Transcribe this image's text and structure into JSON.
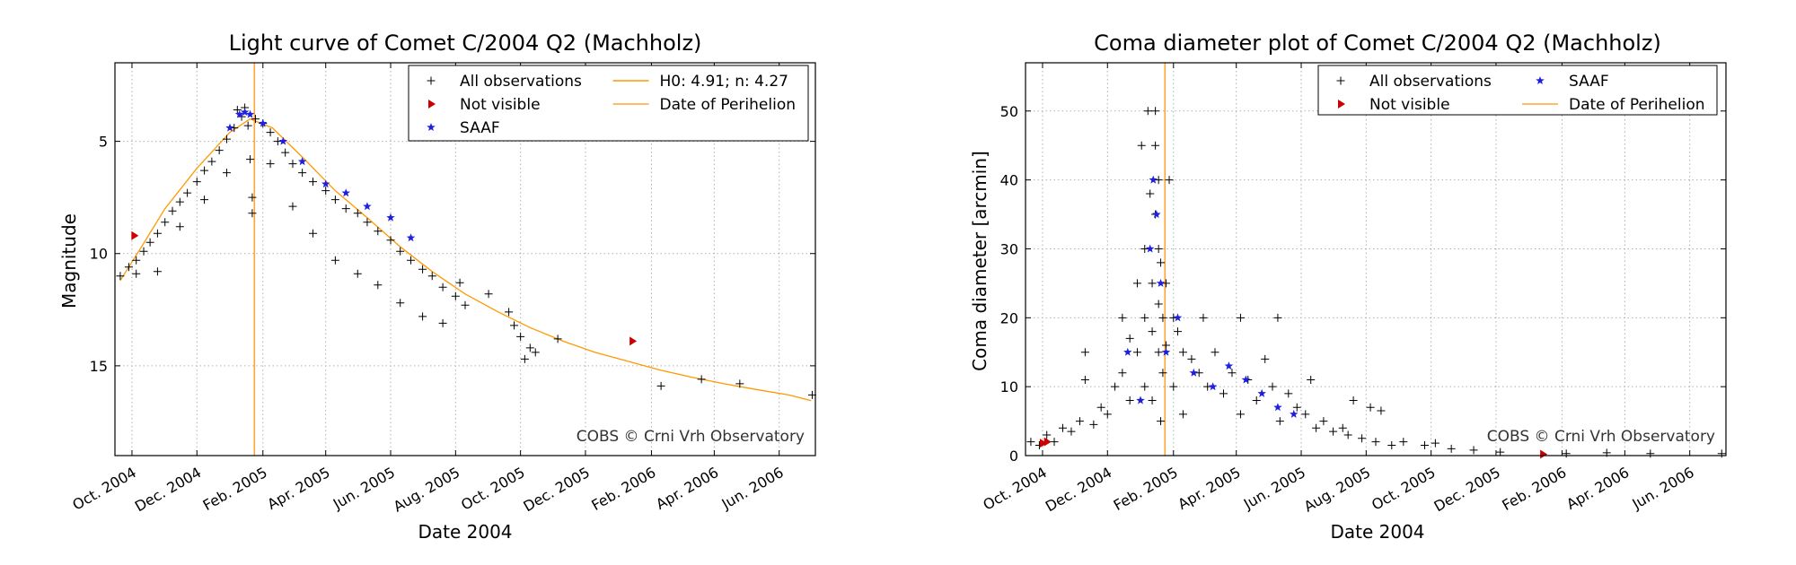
{
  "colors": {
    "observation": "#000000",
    "not_visible": "#cc0000",
    "saaf": "#1f1fe0",
    "model": "#ff9900",
    "perihelion": "#ffa533",
    "grid": "#b0b0b0"
  },
  "chart_data": [
    {
      "type": "scatter",
      "title": "Light curve of Comet C/2004 Q2 (Machholz)",
      "xlabel": "Date 2004",
      "ylabel": "Magnitude",
      "credit": "COBS © Crni Vrh Observatory",
      "xlim": [
        "2004-09-15",
        "2006-07-05"
      ],
      "ylim": [
        19,
        1.5
      ],
      "y_inverted": true,
      "grid": true,
      "legend_placement": "top-right",
      "x_ticks": [
        {
          "date": "2004-10-01",
          "label": "Oct. 2004"
        },
        {
          "date": "2004-12-01",
          "label": "Dec. 2004"
        },
        {
          "date": "2005-02-01",
          "label": "Feb. 2005"
        },
        {
          "date": "2005-04-01",
          "label": "Apr. 2005"
        },
        {
          "date": "2005-06-01",
          "label": "Jun. 2005"
        },
        {
          "date": "2005-08-01",
          "label": "Aug. 2005"
        },
        {
          "date": "2005-10-01",
          "label": "Oct. 2005"
        },
        {
          "date": "2005-12-01",
          "label": "Dec. 2005"
        },
        {
          "date": "2006-02-01",
          "label": "Feb. 2006"
        },
        {
          "date": "2006-04-01",
          "label": "Apr. 2006"
        },
        {
          "date": "2006-06-01",
          "label": "Jun. 2006"
        }
      ],
      "y_ticks": [
        {
          "value": 5,
          "label": "5"
        },
        {
          "value": 10,
          "label": "10"
        },
        {
          "value": 15,
          "label": "15"
        }
      ],
      "legend": [
        {
          "label": "All observations",
          "marker": "plus"
        },
        {
          "label": "Not visible",
          "marker": "triangle"
        },
        {
          "label": "SAAF",
          "marker": "star"
        },
        {
          "label": "H0: 4.91; n: 4.27",
          "marker": "line"
        },
        {
          "label": "Date of Perihelion",
          "marker": "line"
        }
      ],
      "perihelion_date": "2005-01-24",
      "model_curve": [
        [
          "2004-09-20",
          11.2
        ],
        [
          "2004-10-10",
          9.7
        ],
        [
          "2004-11-01",
          8.0
        ],
        [
          "2004-12-01",
          6.2
        ],
        [
          "2005-01-01",
          4.6
        ],
        [
          "2005-01-20",
          4.0
        ],
        [
          "2005-02-10",
          4.4
        ],
        [
          "2005-03-10",
          5.7
        ],
        [
          "2005-04-10",
          7.2
        ],
        [
          "2005-05-10",
          8.4
        ],
        [
          "2005-06-10",
          9.7
        ],
        [
          "2005-07-10",
          10.8
        ],
        [
          "2005-08-10",
          11.8
        ],
        [
          "2005-09-10",
          12.6
        ],
        [
          "2005-10-10",
          13.3
        ],
        [
          "2005-11-10",
          13.9
        ],
        [
          "2005-12-10",
          14.4
        ],
        [
          "2006-01-10",
          14.8
        ],
        [
          "2006-02-10",
          15.2
        ],
        [
          "2006-03-10",
          15.5
        ],
        [
          "2006-04-10",
          15.8
        ],
        [
          "2006-05-10",
          16.05
        ],
        [
          "2006-06-10",
          16.3
        ],
        [
          "2006-07-01",
          16.55
        ]
      ],
      "observations": [
        [
          "2004-09-20",
          11.0
        ],
        [
          "2004-09-28",
          10.6
        ],
        [
          "2004-10-05",
          10.3
        ],
        [
          "2004-10-05",
          10.9
        ],
        [
          "2004-10-12",
          9.9
        ],
        [
          "2004-10-18",
          9.5
        ],
        [
          "2004-10-25",
          9.1
        ],
        [
          "2004-10-25",
          10.8
        ],
        [
          "2004-11-01",
          8.6
        ],
        [
          "2004-11-08",
          8.1
        ],
        [
          "2004-11-15",
          7.7
        ],
        [
          "2004-11-15",
          8.8
        ],
        [
          "2004-11-22",
          7.3
        ],
        [
          "2004-12-01",
          6.8
        ],
        [
          "2004-12-08",
          6.3
        ],
        [
          "2004-12-08",
          7.6
        ],
        [
          "2004-12-15",
          5.9
        ],
        [
          "2004-12-22",
          5.4
        ],
        [
          "2004-12-29",
          4.9
        ],
        [
          "2004-12-29",
          6.4
        ],
        [
          "2005-01-05",
          4.4
        ],
        [
          "2005-01-08",
          3.6
        ],
        [
          "2005-01-12",
          3.9
        ],
        [
          "2005-01-15",
          3.5
        ],
        [
          "2005-01-18",
          4.3
        ],
        [
          "2005-01-20",
          5.8
        ],
        [
          "2005-01-22",
          7.5
        ],
        [
          "2005-01-22",
          8.2
        ],
        [
          "2005-01-25",
          4.0
        ],
        [
          "2005-02-01",
          4.2
        ],
        [
          "2005-02-08",
          4.6
        ],
        [
          "2005-02-08",
          6.0
        ],
        [
          "2005-02-15",
          5.0
        ],
        [
          "2005-02-22",
          5.5
        ],
        [
          "2005-03-01",
          6.0
        ],
        [
          "2005-03-01",
          7.9
        ],
        [
          "2005-03-10",
          6.4
        ],
        [
          "2005-03-20",
          6.8
        ],
        [
          "2005-03-20",
          9.1
        ],
        [
          "2005-04-01",
          7.2
        ],
        [
          "2005-04-10",
          7.6
        ],
        [
          "2005-04-10",
          10.3
        ],
        [
          "2005-04-20",
          8.0
        ],
        [
          "2005-05-01",
          8.2
        ],
        [
          "2005-05-01",
          10.9
        ],
        [
          "2005-05-10",
          8.6
        ],
        [
          "2005-05-20",
          9.0
        ],
        [
          "2005-05-20",
          11.4
        ],
        [
          "2005-06-01",
          9.4
        ],
        [
          "2005-06-10",
          9.9
        ],
        [
          "2005-06-10",
          12.2
        ],
        [
          "2005-06-20",
          10.3
        ],
        [
          "2005-07-01",
          10.7
        ],
        [
          "2005-07-01",
          12.8
        ],
        [
          "2005-07-10",
          11.0
        ],
        [
          "2005-07-20",
          11.5
        ],
        [
          "2005-07-20",
          13.1
        ],
        [
          "2005-08-01",
          11.9
        ],
        [
          "2005-08-05",
          11.3
        ],
        [
          "2005-08-10",
          12.3
        ],
        [
          "2005-09-01",
          11.8
        ],
        [
          "2005-09-20",
          12.6
        ],
        [
          "2005-09-25",
          13.2
        ],
        [
          "2005-10-01",
          13.7
        ],
        [
          "2005-10-10",
          14.2
        ],
        [
          "2005-10-15",
          14.4
        ],
        [
          "2005-10-05",
          14.7
        ],
        [
          "2005-11-05",
          13.8
        ],
        [
          "2006-02-10",
          15.9
        ],
        [
          "2006-03-20",
          15.6
        ],
        [
          "2006-04-25",
          15.8
        ],
        [
          "2006-07-02",
          16.3
        ]
      ],
      "saaf": [
        [
          "2005-01-01",
          4.4
        ],
        [
          "2005-01-10",
          3.8
        ],
        [
          "2005-01-15",
          3.7
        ],
        [
          "2005-01-20",
          3.8
        ],
        [
          "2005-02-01",
          4.2
        ],
        [
          "2005-02-20",
          5.0
        ],
        [
          "2005-03-10",
          5.9
        ],
        [
          "2005-04-01",
          6.9
        ],
        [
          "2005-04-20",
          7.3
        ],
        [
          "2005-05-10",
          7.9
        ],
        [
          "2005-06-01",
          8.4
        ],
        [
          "2005-06-20",
          9.3
        ]
      ],
      "not_visible": [
        [
          "2004-10-03",
          9.2
        ],
        [
          "2006-01-14",
          13.9
        ]
      ]
    },
    {
      "type": "scatter",
      "title": "Coma diameter plot of Comet C/2004 Q2 (Machholz)",
      "xlabel": "Date 2004",
      "ylabel": "Coma diameter [arcmin]",
      "credit": "COBS © Crni Vrh Observatory",
      "xlim": [
        "2004-09-15",
        "2006-07-05"
      ],
      "ylim": [
        0,
        57
      ],
      "grid": true,
      "legend_placement": "top-right",
      "x_ticks": [
        {
          "date": "2004-10-01",
          "label": "Oct. 2004"
        },
        {
          "date": "2004-12-01",
          "label": "Dec. 2004"
        },
        {
          "date": "2005-02-01",
          "label": "Feb. 2005"
        },
        {
          "date": "2005-04-01",
          "label": "Apr. 2005"
        },
        {
          "date": "2005-06-01",
          "label": "Jun. 2005"
        },
        {
          "date": "2005-08-01",
          "label": "Aug. 2005"
        },
        {
          "date": "2005-10-01",
          "label": "Oct. 2005"
        },
        {
          "date": "2005-12-01",
          "label": "Dec. 2005"
        },
        {
          "date": "2006-02-01",
          "label": "Feb. 2006"
        },
        {
          "date": "2006-04-01",
          "label": "Apr. 2006"
        },
        {
          "date": "2006-06-01",
          "label": "Jun. 2006"
        }
      ],
      "y_ticks": [
        {
          "value": 0,
          "label": "0"
        },
        {
          "value": 10,
          "label": "10"
        },
        {
          "value": 20,
          "label": "20"
        },
        {
          "value": 30,
          "label": "30"
        },
        {
          "value": 40,
          "label": "40"
        },
        {
          "value": 50,
          "label": "50"
        }
      ],
      "legend": [
        {
          "label": "All observations",
          "marker": "plus"
        },
        {
          "label": "Not visible",
          "marker": "triangle"
        },
        {
          "label": "SAAF",
          "marker": "star"
        },
        {
          "label": "Date of Perihelion",
          "marker": "line"
        }
      ],
      "perihelion_date": "2005-01-24",
      "observations": [
        [
          "2004-09-20",
          2.0
        ],
        [
          "2004-09-28",
          1.5
        ],
        [
          "2004-10-05",
          3.0
        ],
        [
          "2004-10-12",
          2.0
        ],
        [
          "2004-10-20",
          4.0
        ],
        [
          "2004-10-28",
          3.5
        ],
        [
          "2004-11-05",
          5.0
        ],
        [
          "2004-11-10",
          11.0
        ],
        [
          "2004-11-10",
          15.0
        ],
        [
          "2004-11-18",
          4.5
        ],
        [
          "2004-11-25",
          7.0
        ],
        [
          "2004-12-01",
          6.0
        ],
        [
          "2004-12-08",
          10.0
        ],
        [
          "2004-12-15",
          12.0
        ],
        [
          "2004-12-15",
          20.0
        ],
        [
          "2004-12-22",
          17.0
        ],
        [
          "2004-12-22",
          8.0
        ],
        [
          "2004-12-29",
          25.0
        ],
        [
          "2004-12-29",
          15.0
        ],
        [
          "2005-01-02",
          45.0
        ],
        [
          "2005-01-05",
          30.0
        ],
        [
          "2005-01-05",
          20.0
        ],
        [
          "2005-01-05",
          10.0
        ],
        [
          "2005-01-08",
          50.0
        ],
        [
          "2005-01-10",
          38.0
        ],
        [
          "2005-01-12",
          25.0
        ],
        [
          "2005-01-12",
          18.0
        ],
        [
          "2005-01-12",
          8.0
        ],
        [
          "2005-01-15",
          35.0
        ],
        [
          "2005-01-15",
          50.0
        ],
        [
          "2005-01-15",
          45.0
        ],
        [
          "2005-01-18",
          40.0
        ],
        [
          "2005-01-18",
          30.0
        ],
        [
          "2005-01-18",
          22.0
        ],
        [
          "2005-01-18",
          15.0
        ],
        [
          "2005-01-20",
          28.0
        ],
        [
          "2005-01-20",
          5.0
        ],
        [
          "2005-01-22",
          20.0
        ],
        [
          "2005-01-22",
          12.0
        ],
        [
          "2005-01-25",
          25.0
        ],
        [
          "2005-01-25",
          16.0
        ],
        [
          "2005-01-28",
          40.0
        ],
        [
          "2005-02-01",
          20.0
        ],
        [
          "2005-02-01",
          10.0
        ],
        [
          "2005-02-05",
          18.0
        ],
        [
          "2005-02-10",
          15.0
        ],
        [
          "2005-02-10",
          6.0
        ],
        [
          "2005-02-18",
          14.0
        ],
        [
          "2005-02-25",
          12.0
        ],
        [
          "2005-03-01",
          20.0
        ],
        [
          "2005-03-05",
          10.0
        ],
        [
          "2005-03-12",
          15.0
        ],
        [
          "2005-03-20",
          9.0
        ],
        [
          "2005-03-28",
          12.0
        ],
        [
          "2005-04-05",
          20.0
        ],
        [
          "2005-04-05",
          6.0
        ],
        [
          "2005-04-12",
          11.0
        ],
        [
          "2005-04-20",
          8.0
        ],
        [
          "2005-04-28",
          14.0
        ],
        [
          "2005-05-05",
          10.0
        ],
        [
          "2005-05-10",
          20.0
        ],
        [
          "2005-05-12",
          5.0
        ],
        [
          "2005-05-20",
          9.0
        ],
        [
          "2005-05-28",
          7.0
        ],
        [
          "2005-06-05",
          6.0
        ],
        [
          "2005-06-10",
          11.0
        ],
        [
          "2005-06-15",
          4.0
        ],
        [
          "2005-06-22",
          5.0
        ],
        [
          "2005-07-01",
          3.5
        ],
        [
          "2005-07-10",
          4.0
        ],
        [
          "2005-07-15",
          3.0
        ],
        [
          "2005-07-20",
          8.0
        ],
        [
          "2005-07-28",
          2.5
        ],
        [
          "2005-08-05",
          7.0
        ],
        [
          "2005-08-10",
          2.0
        ],
        [
          "2005-08-15",
          6.5
        ],
        [
          "2005-08-25",
          1.5
        ],
        [
          "2005-09-05",
          2.0
        ],
        [
          "2005-09-25",
          1.5
        ],
        [
          "2005-10-05",
          1.8
        ],
        [
          "2005-10-20",
          1.0
        ],
        [
          "2005-11-10",
          0.8
        ],
        [
          "2005-12-05",
          0.5
        ],
        [
          "2006-02-05",
          0.3
        ],
        [
          "2006-03-15",
          0.4
        ],
        [
          "2006-04-25",
          0.3
        ],
        [
          "2006-07-01",
          0.3
        ]
      ],
      "saaf": [
        [
          "2004-12-20",
          15.0
        ],
        [
          "2005-01-01",
          8.0
        ],
        [
          "2005-01-10",
          30.0
        ],
        [
          "2005-01-13",
          40.0
        ],
        [
          "2005-01-16",
          35.0
        ],
        [
          "2005-01-20",
          25.0
        ],
        [
          "2005-01-25",
          15.0
        ],
        [
          "2005-02-05",
          20.0
        ],
        [
          "2005-02-20",
          12.0
        ],
        [
          "2005-03-10",
          10.0
        ],
        [
          "2005-03-25",
          13.0
        ],
        [
          "2005-04-10",
          11.0
        ],
        [
          "2005-04-25",
          9.0
        ],
        [
          "2005-05-10",
          7.0
        ],
        [
          "2005-05-25",
          6.0
        ]
      ],
      "not_visible": [
        [
          "2004-10-01",
          1.8
        ],
        [
          "2004-10-05",
          2.0
        ],
        [
          "2006-01-14",
          0.2
        ]
      ]
    }
  ]
}
